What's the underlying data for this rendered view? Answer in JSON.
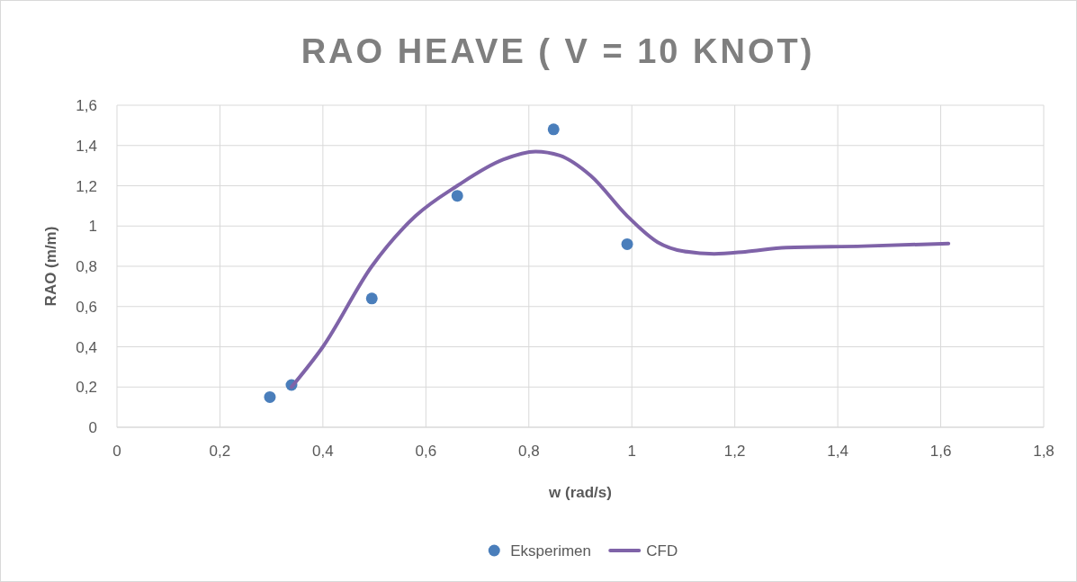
{
  "chart_data": {
    "type": "scatter",
    "title": "RAO HEAVE ( V = 10 KNOT)",
    "xlabel": "w (rad/s)",
    "ylabel": "RAO (m/m)",
    "xlim": [
      0,
      1.8
    ],
    "xticks": [
      {
        "value": 0,
        "label": "0"
      },
      {
        "value": 0.2,
        "label": "0,2"
      },
      {
        "value": 0.4,
        "label": "0,4"
      },
      {
        "value": 0.6,
        "label": "0,6"
      },
      {
        "value": 0.8,
        "label": "0,8"
      },
      {
        "value": 1,
        "label": "1"
      },
      {
        "value": 1.2,
        "label": "1,2"
      },
      {
        "value": 1.4,
        "label": "1,4"
      },
      {
        "value": 1.6,
        "label": "1,6"
      },
      {
        "value": 1.8,
        "label": "1,8"
      }
    ],
    "ylim": [
      0,
      1.6
    ],
    "yticks": [
      {
        "value": 0,
        "label": "0"
      },
      {
        "value": 0.2,
        "label": "0,2"
      },
      {
        "value": 0.4,
        "label": "0,4"
      },
      {
        "value": 0.6,
        "label": "0,6"
      },
      {
        "value": 0.8,
        "label": "0,8"
      },
      {
        "value": 1,
        "label": "1"
      },
      {
        "value": 1.2,
        "label": "1,2"
      },
      {
        "value": 1.4,
        "label": "1,4"
      },
      {
        "value": 1.6,
        "label": "1,6"
      }
    ],
    "grid": true,
    "legend": "bottom",
    "series": [
      {
        "name": "Eksperimen",
        "marker": "circle",
        "color": "#4a7ebb",
        "x": [
          0.297,
          0.339,
          0.495,
          0.661,
          0.848,
          0.991
        ],
        "values": [
          0.15,
          0.21,
          0.64,
          1.15,
          1.48,
          0.91
        ]
      },
      {
        "name": "CFD",
        "type": "line",
        "marker": "none",
        "color": "#7f63a8",
        "x": [
          0.339,
          0.4,
          0.495,
          0.58,
          0.661,
          0.75,
          0.813,
          0.86,
          0.92,
          0.991,
          1.05,
          1.1,
          1.16,
          1.22,
          1.3,
          1.45,
          1.615
        ],
        "values": [
          0.2,
          0.4,
          0.8,
          1.05,
          1.2,
          1.33,
          1.37,
          1.35,
          1.25,
          1.05,
          0.92,
          0.875,
          0.862,
          0.872,
          0.893,
          0.9,
          0.913
        ]
      }
    ]
  }
}
